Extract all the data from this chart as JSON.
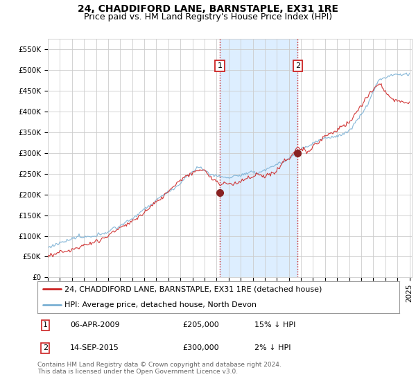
{
  "title": "24, CHADDIFORD LANE, BARNSTAPLE, EX31 1RE",
  "subtitle": "Price paid vs. HM Land Registry's House Price Index (HPI)",
  "ylim": [
    0,
    575000
  ],
  "yticks": [
    0,
    50000,
    100000,
    150000,
    200000,
    250000,
    300000,
    350000,
    400000,
    450000,
    500000,
    550000
  ],
  "ytick_labels": [
    "£0",
    "£50K",
    "£100K",
    "£150K",
    "£200K",
    "£250K",
    "£300K",
    "£350K",
    "£400K",
    "£450K",
    "£500K",
    "£550K"
  ],
  "red_color": "#cc2222",
  "blue_color": "#7ab0d4",
  "dot_color": "#882222",
  "shade_color": "#ddeeff",
  "grid_color": "#cccccc",
  "legend_label_red": "24, CHADDIFORD LANE, BARNSTAPLE, EX31 1RE (detached house)",
  "legend_label_blue": "HPI: Average price, detached house, North Devon",
  "ann1_num": "1",
  "ann1_date": "06-APR-2009",
  "ann1_price": "£205,000",
  "ann1_hpi": "15% ↓ HPI",
  "ann1_x": 2009.27,
  "ann1_y": 205000,
  "ann2_num": "2",
  "ann2_date": "14-SEP-2015",
  "ann2_price": "£300,000",
  "ann2_hpi": "2% ↓ HPI",
  "ann2_x": 2015.72,
  "ann2_y": 300000,
  "vline1_x": 2009.27,
  "vline2_x": 2015.72,
  "footnote": "Contains HM Land Registry data © Crown copyright and database right 2024.\nThis data is licensed under the Open Government Licence v3.0.",
  "title_fontsize": 10,
  "subtitle_fontsize": 9,
  "tick_fontsize": 7.5,
  "legend_fontsize": 8,
  "table_fontsize": 8,
  "footnote_fontsize": 6.5,
  "xlim_left": 1995.0,
  "xlim_right": 2025.2
}
